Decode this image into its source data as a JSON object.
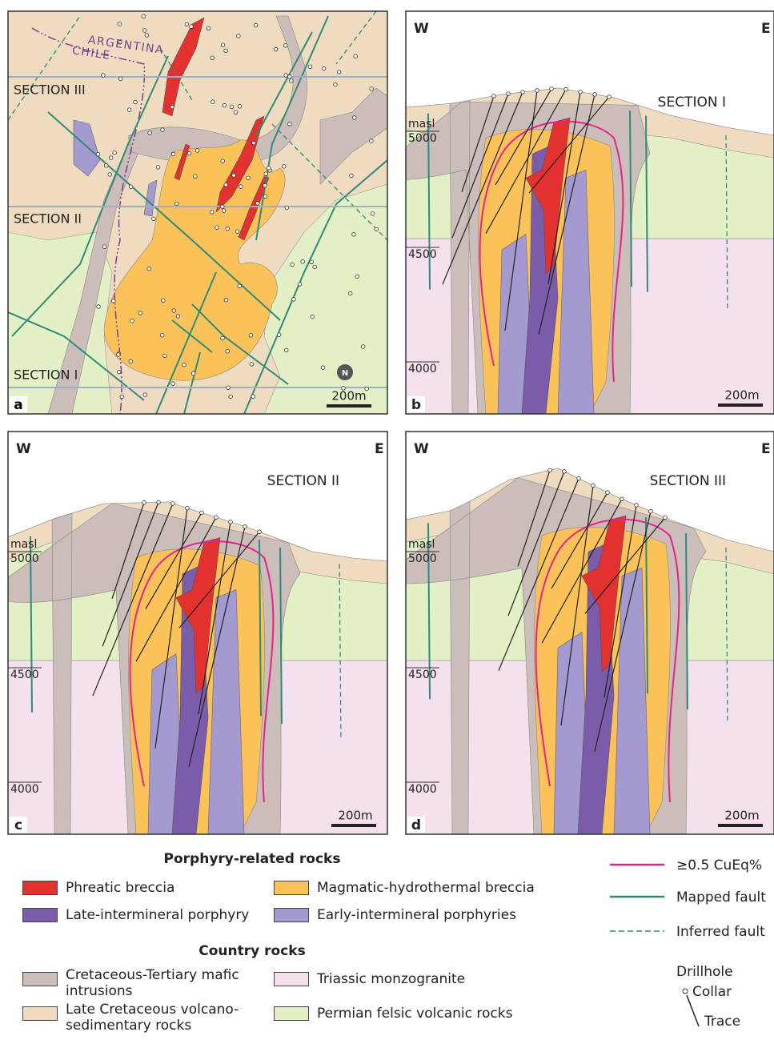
{
  "map": {
    "country_labels": [
      "ARGENTINA",
      "CHILE"
    ],
    "section_labels": [
      "SECTION III",
      "SECTION II",
      "SECTION I"
    ],
    "north": "N",
    "scale": "200m",
    "letter": "a"
  },
  "sections": [
    {
      "west": "W",
      "east": "E",
      "title": "SECTION I",
      "unit": "masl",
      "elevations": [
        "5000",
        "4500",
        "4000"
      ],
      "scale": "200m",
      "letter": "b"
    },
    {
      "west": "W",
      "east": "E",
      "title": "SECTION II",
      "unit": "masl",
      "elevations": [
        "5000",
        "4500",
        "4000"
      ],
      "scale": "200m",
      "letter": "c"
    },
    {
      "west": "W",
      "east": "E",
      "title": "SECTION III",
      "unit": "masl",
      "elevations": [
        "5000",
        "4500",
        "4000"
      ],
      "scale": "200m",
      "letter": "d"
    }
  ],
  "legend": {
    "porphyry_heading": "Porphyry-related rocks",
    "porphyry_units": [
      "Phreatic breccia",
      "Magmatic-hydrothermal breccia",
      "Late-intermineral porphyry",
      "Early-intermineral porphyries"
    ],
    "country_heading": "Country rocks",
    "country_units": [
      "Cretaceous-Tertiary mafic intrusions",
      "Triassic monzogranite",
      "Late Cretaceous volcano-sedimentary rocks",
      "Permian felsic volcanic rocks"
    ],
    "lines": [
      "≥0.5 CuEq%",
      "Mapped fault",
      "Inferred fault"
    ],
    "drillhole": {
      "title": "Drillhole",
      "collar": "Collar",
      "trace": "Trace"
    }
  }
}
